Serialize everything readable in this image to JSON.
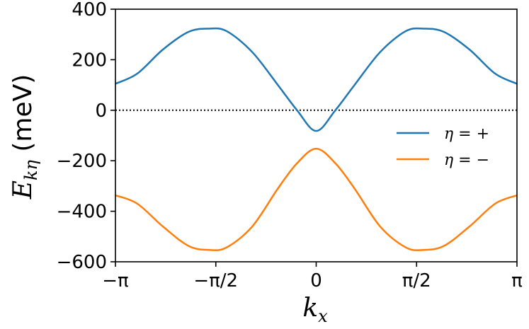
{
  "chart_data": {
    "type": "line",
    "xlabel": "k_x",
    "ylabel": "E_kη (meV)",
    "xlim": [
      -3.14159,
      3.14159
    ],
    "ylim": [
      -600,
      400
    ],
    "x_ticks": [
      {
        "value": -3.14159,
        "label": "−π"
      },
      {
        "value": -1.5708,
        "label": "−π/2"
      },
      {
        "value": 0,
        "label": "0"
      },
      {
        "value": 1.5708,
        "label": "π/2"
      },
      {
        "value": 3.14159,
        "label": "π"
      }
    ],
    "y_ticks": [
      {
        "value": 400,
        "label": "400"
      },
      {
        "value": 200,
        "label": "200"
      },
      {
        "value": 0,
        "label": "0"
      },
      {
        "value": -200,
        "label": "−200"
      },
      {
        "value": -400,
        "label": "−400"
      },
      {
        "value": -600,
        "label": "−600"
      }
    ],
    "reference_line": {
      "y": 0,
      "style": "dotted",
      "color": "#000000"
    },
    "legend_position": "center-right",
    "series": [
      {
        "name": "η = +",
        "color": "#1f77b4",
        "x": [
          -3.14,
          -2.8,
          -2.4,
          -2.0,
          -1.68,
          -1.4,
          -1.0,
          -0.6,
          -0.3,
          0.0,
          0.3,
          0.6,
          1.0,
          1.4,
          1.68,
          2.0,
          2.4,
          2.8,
          3.14
        ],
        "y": [
          105,
          145,
          240,
          310,
          323,
          313,
          230,
          100,
          0,
          -82,
          0,
          100,
          230,
          313,
          323,
          310,
          240,
          145,
          105
        ]
      },
      {
        "name": "η = −",
        "color": "#ff7f0e",
        "x": [
          -3.14,
          -2.8,
          -2.4,
          -2.0,
          -1.68,
          -1.4,
          -1.0,
          -0.6,
          -0.3,
          0.0,
          0.3,
          0.6,
          1.0,
          1.4,
          1.68,
          2.0,
          2.4,
          2.8,
          3.14
        ],
        "y": [
          -337,
          -370,
          -460,
          -537,
          -553,
          -543,
          -460,
          -310,
          -210,
          -152,
          -210,
          -310,
          -460,
          -543,
          -553,
          -537,
          -460,
          -370,
          -337
        ]
      }
    ]
  }
}
